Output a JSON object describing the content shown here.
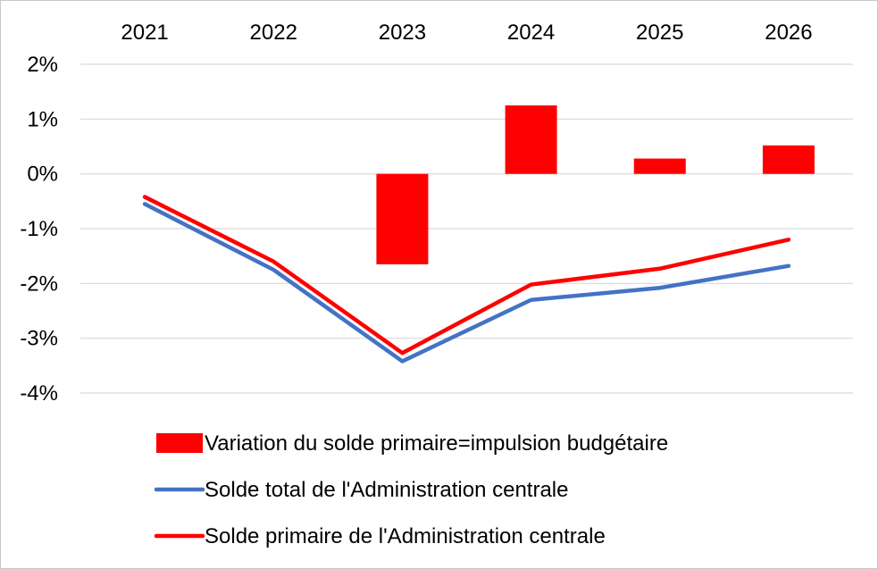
{
  "chart_data": {
    "type": "bar",
    "categories": [
      "2021",
      "2022",
      "2023",
      "2024",
      "2025",
      "2026"
    ],
    "ylim": [
      -4,
      2
    ],
    "yticks": [
      2,
      1,
      0,
      -1,
      -2,
      -3,
      -4
    ],
    "ytick_labels": [
      "2%",
      "1%",
      "0%",
      "-1%",
      "-2%",
      "-3%",
      "-4%"
    ],
    "grid": true,
    "x_axis_position": "top",
    "legend_position": "bottom",
    "series": [
      {
        "name": "Variation du solde primaire=impulsion budgétaire",
        "kind": "bar",
        "color": "#ff0000",
        "values": [
          null,
          null,
          -1.65,
          1.25,
          0.28,
          0.52
        ]
      },
      {
        "name": "Solde total de l'Administration centrale",
        "kind": "line",
        "color": "#4472c4",
        "values": [
          -0.55,
          -1.75,
          -3.42,
          -2.3,
          -2.08,
          -1.68
        ]
      },
      {
        "name": "Solde primaire de l'Administration centrale",
        "kind": "line",
        "color": "#ff0000",
        "values": [
          -0.42,
          -1.6,
          -3.27,
          -2.02,
          -1.73,
          -1.2
        ]
      }
    ]
  }
}
